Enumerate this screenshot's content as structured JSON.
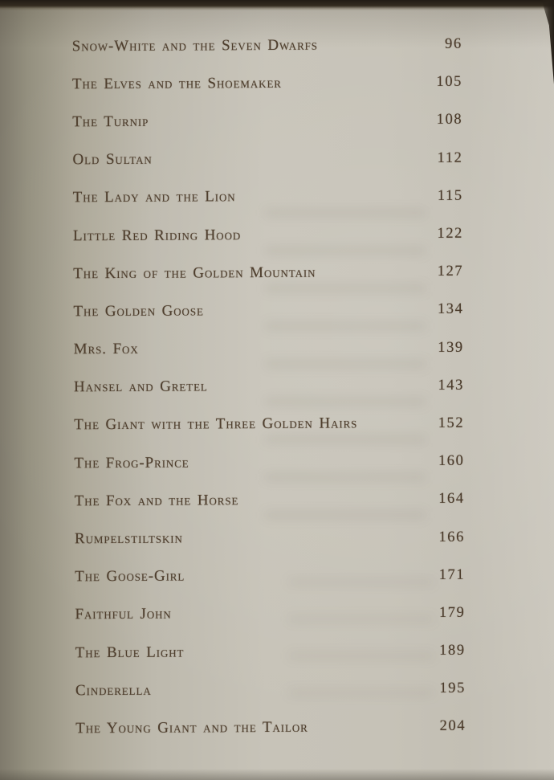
{
  "page": {
    "kind": "book-table-of-contents",
    "colors": {
      "paper_light": "#c7c3b8",
      "paper_shadow": "#7f7a6c",
      "ink": "#4e3e2d",
      "photo_edge": "#241e17"
    },
    "entries": [
      {
        "title": "Snow-White and the Seven Dwarfs",
        "page": "96"
      },
      {
        "title": "The Elves and the Shoemaker",
        "page": "105"
      },
      {
        "title": "The Turnip",
        "page": "108"
      },
      {
        "title": "Old Sultan",
        "page": "112"
      },
      {
        "title": "The Lady and the Lion",
        "page": "115"
      },
      {
        "title": "Little Red Riding Hood",
        "page": "122"
      },
      {
        "title": "The King of the Golden Mountain",
        "page": "127"
      },
      {
        "title": "The Golden Goose",
        "page": "134"
      },
      {
        "title": "Mrs. Fox",
        "page": "139"
      },
      {
        "title": "Hansel and Gretel",
        "page": "143"
      },
      {
        "title": "The Giant with the Three Golden Hairs",
        "page": "152"
      },
      {
        "title": "The Frog-Prince",
        "page": "160"
      },
      {
        "title": "The Fox and the Horse",
        "page": "164"
      },
      {
        "title": "Rumpelstiltskin",
        "page": "166"
      },
      {
        "title": "The Goose-Girl",
        "page": "171"
      },
      {
        "title": "Faithful John",
        "page": "179"
      },
      {
        "title": "The Blue Light",
        "page": "189"
      },
      {
        "title": "Cinderella",
        "page": "195"
      },
      {
        "title": "The Young Giant and the Tailor",
        "page": "204"
      }
    ]
  }
}
